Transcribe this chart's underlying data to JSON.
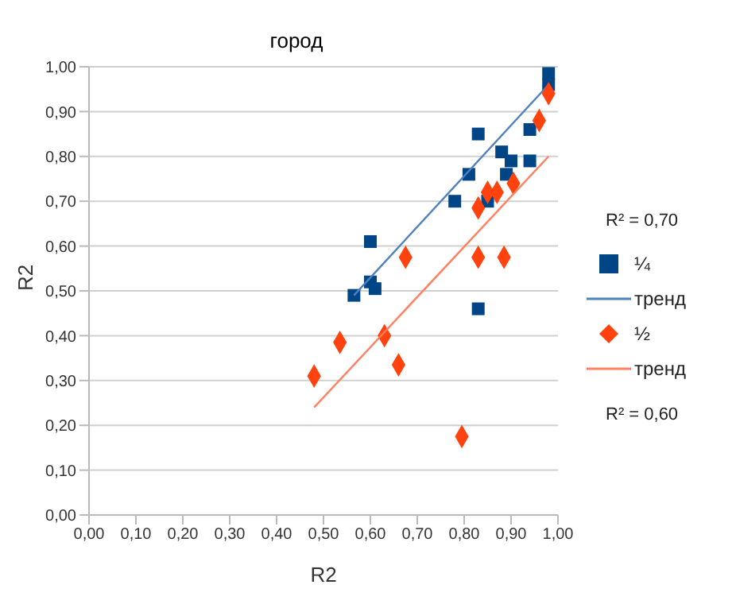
{
  "chart_data": {
    "type": "scatter",
    "title": "город",
    "xlabel": "R2",
    "ylabel": "R2",
    "xlim": [
      0,
      1
    ],
    "ylim": [
      0,
      1
    ],
    "xticks": [
      {
        "value": 0,
        "label": "0,00"
      },
      {
        "value": 0.1,
        "label": "0,10"
      },
      {
        "value": 0.2,
        "label": "0,20"
      },
      {
        "value": 0.3,
        "label": "0,30"
      },
      {
        "value": 0.4,
        "label": "0,40"
      },
      {
        "value": 0.5,
        "label": "0,50"
      },
      {
        "value": 0.6,
        "label": "0,60"
      },
      {
        "value": 0.7,
        "label": "0,70"
      },
      {
        "value": 0.8,
        "label": "0,80"
      },
      {
        "value": 0.9,
        "label": "0,90"
      },
      {
        "value": 1,
        "label": "1,00"
      }
    ],
    "yticks": [
      {
        "value": 0,
        "label": "0,00"
      },
      {
        "value": 0.1,
        "label": "0,10"
      },
      {
        "value": 0.2,
        "label": "0,20"
      },
      {
        "value": 0.3,
        "label": "0,30"
      },
      {
        "value": 0.4,
        "label": "0,40"
      },
      {
        "value": 0.5,
        "label": "0,50"
      },
      {
        "value": 0.6,
        "label": "0,60"
      },
      {
        "value": 0.7,
        "label": "0,70"
      },
      {
        "value": 0.8,
        "label": "0,80"
      },
      {
        "value": 0.9,
        "label": "0,90"
      },
      {
        "value": 1,
        "label": "1,00"
      }
    ],
    "grid": "y",
    "legend": "right",
    "annotations": [
      "R² = 0,70",
      "R² = 0,60"
    ],
    "series": [
      {
        "name": "¼",
        "marker": "square",
        "color": "#004586",
        "x": [
          0.6,
          0.6,
          0.61,
          0.565,
          0.78,
          0.85,
          0.83,
          0.83,
          0.81,
          0.88,
          0.89,
          0.9,
          0.94,
          0.94,
          0.98,
          0.98
        ],
        "values": [
          0.61,
          0.52,
          0.505,
          0.49,
          0.7,
          0.7,
          0.46,
          0.85,
          0.76,
          0.81,
          0.76,
          0.79,
          0.79,
          0.86,
          0.985,
          0.96
        ]
      },
      {
        "name": "тренд",
        "type": "line",
        "color": "#4f81bd",
        "x": [
          0.565,
          0.98
        ],
        "values": [
          0.49,
          0.96
        ]
      },
      {
        "name": "½",
        "marker": "diamond",
        "color": "#ff420e",
        "x": [
          0.48,
          0.535,
          0.63,
          0.66,
          0.675,
          0.83,
          0.885,
          0.83,
          0.85,
          0.87,
          0.905,
          0.795,
          0.96,
          0.98
        ],
        "values": [
          0.31,
          0.385,
          0.4,
          0.335,
          0.575,
          0.575,
          0.575,
          0.685,
          0.72,
          0.72,
          0.74,
          0.175,
          0.88,
          0.94
        ]
      },
      {
        "name": "тренд",
        "type": "line",
        "color": "#ff7f5e",
        "x": [
          0.48,
          0.98
        ],
        "values": [
          0.24,
          0.8
        ]
      }
    ]
  }
}
